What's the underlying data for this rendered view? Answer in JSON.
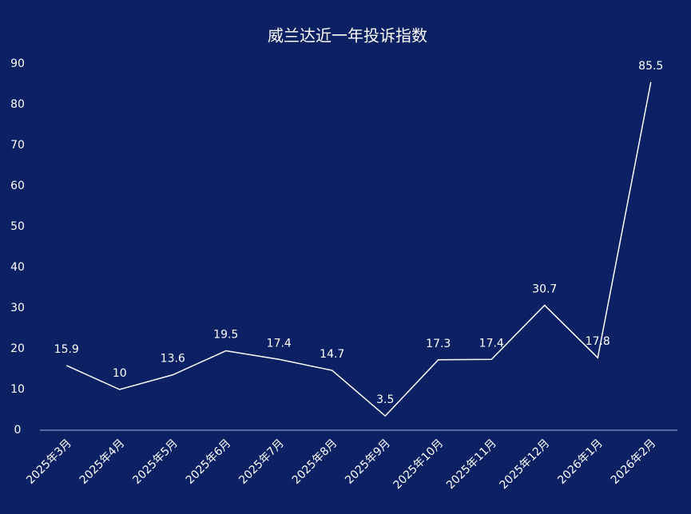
{
  "chart_data": {
    "type": "line",
    "title": "威兰达近一年投诉指数",
    "categories": [
      "2025年3月",
      "2025年4月",
      "2025年5月",
      "2025年6月",
      "2025年7月",
      "2025年8月",
      "2025年9月",
      "2025年10月",
      "2025年11月",
      "2025年12月",
      "2026年1月",
      "2026年2月"
    ],
    "values": [
      15.9,
      10,
      13.6,
      19.5,
      17.4,
      14.7,
      3.5,
      17.3,
      17.4,
      30.7,
      17.8,
      85.5
    ],
    "color": "#ffffff",
    "ylim": [
      0,
      90
    ],
    "yticks": [
      0,
      10,
      20,
      30,
      40,
      50,
      60,
      70,
      80,
      90
    ],
    "grid": false
  }
}
